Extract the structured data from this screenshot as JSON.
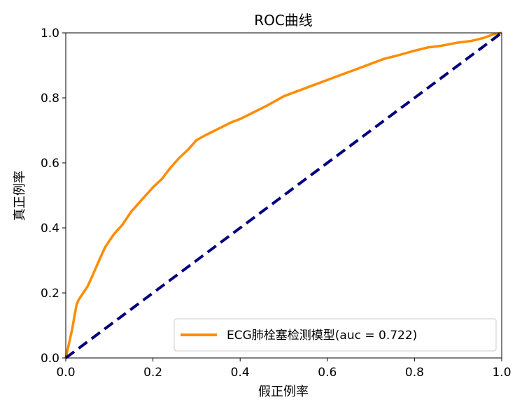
{
  "chart_data": {
    "type": "line",
    "title": "ROC曲线",
    "xlabel": "假正例率",
    "ylabel": "真正例率",
    "xlim": [
      0.0,
      1.0
    ],
    "ylim": [
      0.0,
      1.0
    ],
    "x_ticks": [
      "0.0",
      "0.2",
      "0.4",
      "0.6",
      "0.8",
      "1.0"
    ],
    "y_ticks": [
      "0.0",
      "0.2",
      "0.4",
      "0.6",
      "0.8",
      "1.0"
    ],
    "grid": false,
    "legend_position": "lower-right",
    "series": [
      {
        "name": "ECG肺栓塞检测模型(auc = 0.722)",
        "color": "#ff8c00",
        "style": "solid",
        "x": [
          0.0,
          0.005,
          0.01,
          0.015,
          0.02,
          0.025,
          0.03,
          0.04,
          0.05,
          0.06,
          0.07,
          0.08,
          0.09,
          0.1,
          0.11,
          0.12,
          0.13,
          0.14,
          0.15,
          0.16,
          0.17,
          0.18,
          0.19,
          0.2,
          0.22,
          0.24,
          0.26,
          0.28,
          0.3,
          0.32,
          0.35,
          0.38,
          0.4,
          0.43,
          0.46,
          0.5,
          0.53,
          0.56,
          0.6,
          0.63,
          0.66,
          0.7,
          0.73,
          0.76,
          0.8,
          0.83,
          0.86,
          0.9,
          0.93,
          0.96,
          0.98,
          1.0
        ],
        "y": [
          0.0,
          0.03,
          0.06,
          0.09,
          0.13,
          0.165,
          0.18,
          0.2,
          0.22,
          0.25,
          0.28,
          0.31,
          0.34,
          0.36,
          0.38,
          0.395,
          0.41,
          0.43,
          0.45,
          0.465,
          0.48,
          0.495,
          0.51,
          0.525,
          0.55,
          0.585,
          0.615,
          0.64,
          0.67,
          0.685,
          0.705,
          0.725,
          0.735,
          0.755,
          0.775,
          0.805,
          0.82,
          0.835,
          0.855,
          0.87,
          0.885,
          0.905,
          0.92,
          0.93,
          0.945,
          0.955,
          0.96,
          0.97,
          0.975,
          0.985,
          0.995,
          1.0
        ]
      },
      {
        "name": "",
        "color": "#000080",
        "style": "dashed",
        "x": [
          0.0,
          1.0
        ],
        "y": [
          0.0,
          1.0
        ]
      }
    ]
  }
}
